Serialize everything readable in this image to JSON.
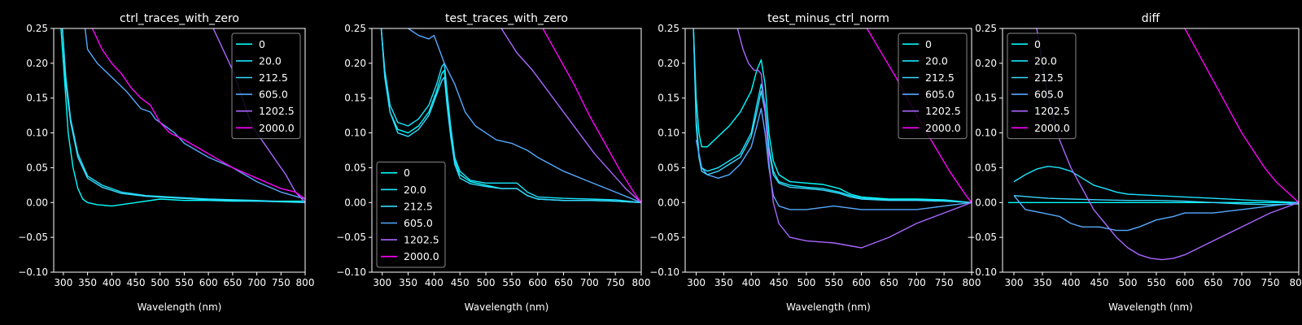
{
  "colors": {
    "background": "#000000",
    "axes": "#ffffff",
    "text": "#ffffff",
    "series": [
      "#00ffff",
      "#1ae5ff",
      "#38d8ff",
      "#55aaff",
      "#aa66ff",
      "#ff00ff"
    ]
  },
  "chart_data": [
    {
      "type": "line",
      "title": "ctrl_traces_with_zero",
      "xlabel": "Wavelength (nm)",
      "ylabel": "",
      "xlim": [
        280,
        800
      ],
      "ylim": [
        -0.1,
        0.25
      ],
      "xticks": [
        300,
        350,
        400,
        450,
        500,
        550,
        600,
        650,
        700,
        750,
        800
      ],
      "yticks": [
        -0.1,
        -0.05,
        0.0,
        0.05,
        0.1,
        0.15,
        0.2,
        0.25
      ],
      "ytick_labels": [
        "−0.10",
        "−0.05",
        "0.00",
        "0.05",
        "0.10",
        "0.15",
        "0.20",
        "0.25"
      ],
      "legend_position": "upper right",
      "series": [
        {
          "name": "0",
          "x": [
            295,
            300,
            305,
            310,
            320,
            330,
            340,
            350,
            370,
            400,
            450,
            500,
            550,
            600,
            650,
            700,
            750,
            800
          ],
          "y": [
            0.25,
            0.2,
            0.15,
            0.1,
            0.05,
            0.02,
            0.005,
            0.0,
            -0.003,
            -0.005,
            0.0,
            0.005,
            0.003,
            0.003,
            0.002,
            0.002,
            0.002,
            0.002
          ]
        },
        {
          "name": "20.0",
          "x": [
            298,
            305,
            315,
            330,
            350,
            380,
            420,
            470,
            520,
            600,
            700,
            800
          ],
          "y": [
            0.25,
            0.18,
            0.12,
            0.07,
            0.038,
            0.025,
            0.015,
            0.01,
            0.008,
            0.005,
            0.003,
            0.0
          ]
        },
        {
          "name": "212.5",
          "x": [
            298,
            305,
            315,
            330,
            350,
            380,
            420,
            470,
            520,
            600,
            700,
            800
          ],
          "y": [
            0.25,
            0.17,
            0.115,
            0.065,
            0.035,
            0.022,
            0.013,
            0.009,
            0.007,
            0.004,
            0.002,
            0.0
          ]
        },
        {
          "name": "605.0",
          "x": [
            345,
            350,
            370,
            400,
            430,
            460,
            480,
            490,
            510,
            530,
            550,
            600,
            650,
            700,
            750,
            800
          ],
          "y": [
            0.25,
            0.22,
            0.2,
            0.18,
            0.16,
            0.135,
            0.13,
            0.12,
            0.11,
            0.1,
            0.085,
            0.065,
            0.05,
            0.03,
            0.015,
            0.005
          ]
        },
        {
          "name": "1202.5",
          "x": [
            610,
            630,
            650,
            670,
            690,
            700,
            720,
            740,
            760,
            780,
            800
          ],
          "y": [
            0.25,
            0.22,
            0.19,
            0.15,
            0.11,
            0.1,
            0.08,
            0.06,
            0.04,
            0.015,
            0.0
          ]
        },
        {
          "name": "2000.0",
          "x": [
            360,
            380,
            400,
            420,
            440,
            460,
            480,
            500,
            520,
            550,
            600,
            650,
            700,
            750,
            780,
            800
          ],
          "y": [
            0.25,
            0.22,
            0.2,
            0.185,
            0.165,
            0.15,
            0.14,
            0.115,
            0.1,
            0.09,
            0.07,
            0.05,
            0.035,
            0.02,
            0.015,
            0.005
          ]
        }
      ]
    },
    {
      "type": "line",
      "title": "test_traces_with_zero",
      "xlabel": "Wavelength (nm)",
      "ylabel": "",
      "xlim": [
        280,
        800
      ],
      "ylim": [
        -0.1,
        0.25
      ],
      "xticks": [
        300,
        350,
        400,
        450,
        500,
        550,
        600,
        650,
        700,
        750,
        800
      ],
      "yticks": [
        -0.1,
        -0.05,
        0.0,
        0.05,
        0.1,
        0.15,
        0.2,
        0.25
      ],
      "ytick_labels": [
        "−0.10",
        "−0.05",
        "0.00",
        "0.05",
        "0.10",
        "0.15",
        "0.20",
        "0.25"
      ],
      "legend_position": "lower left",
      "series": [
        {
          "name": "0",
          "x": [
            298,
            305,
            315,
            330,
            350,
            370,
            390,
            405,
            415,
            420,
            425,
            432,
            440,
            450,
            470,
            500,
            530,
            560,
            580,
            600,
            650,
            700,
            750,
            800
          ],
          "y": [
            0.25,
            0.18,
            0.13,
            0.105,
            0.1,
            0.11,
            0.13,
            0.16,
            0.185,
            0.19,
            0.15,
            0.1,
            0.06,
            0.04,
            0.03,
            0.025,
            0.02,
            0.02,
            0.01,
            0.005,
            0.003,
            0.003,
            0.002,
            0.0
          ]
        },
        {
          "name": "20.0",
          "x": [
            298,
            305,
            315,
            330,
            350,
            370,
            390,
            405,
            415,
            420,
            425,
            432,
            440,
            450,
            470,
            500,
            530,
            560,
            580,
            600,
            650,
            700,
            750,
            800
          ],
          "y": [
            0.25,
            0.19,
            0.14,
            0.115,
            0.11,
            0.12,
            0.14,
            0.17,
            0.195,
            0.2,
            0.16,
            0.11,
            0.065,
            0.045,
            0.032,
            0.028,
            0.028,
            0.028,
            0.015,
            0.008,
            0.006,
            0.005,
            0.004,
            0.0
          ]
        },
        {
          "name": "212.5",
          "x": [
            298,
            305,
            315,
            330,
            350,
            370,
            390,
            405,
            415,
            420,
            425,
            432,
            440,
            450,
            470,
            500,
            530,
            560,
            580,
            600,
            650,
            700,
            750,
            800
          ],
          "y": [
            0.25,
            0.18,
            0.13,
            0.1,
            0.095,
            0.105,
            0.125,
            0.155,
            0.175,
            0.18,
            0.14,
            0.095,
            0.055,
            0.035,
            0.027,
            0.023,
            0.02,
            0.02,
            0.01,
            0.005,
            0.003,
            0.003,
            0.002,
            0.0
          ]
        },
        {
          "name": "605.0",
          "x": [
            350,
            370,
            390,
            400,
            420,
            440,
            460,
            480,
            500,
            520,
            550,
            580,
            600,
            650,
            700,
            750,
            800
          ],
          "y": [
            0.25,
            0.24,
            0.235,
            0.24,
            0.2,
            0.17,
            0.13,
            0.11,
            0.1,
            0.09,
            0.085,
            0.075,
            0.065,
            0.045,
            0.03,
            0.015,
            0.0
          ]
        },
        {
          "name": "1202.5",
          "x": [
            530,
            560,
            590,
            620,
            650,
            680,
            710,
            740,
            770,
            800
          ],
          "y": [
            0.25,
            0.215,
            0.19,
            0.16,
            0.13,
            0.1,
            0.07,
            0.045,
            0.02,
            0.0
          ]
        },
        {
          "name": "2000.0",
          "x": [
            610,
            640,
            670,
            700,
            730,
            760,
            790,
            800
          ],
          "y": [
            0.25,
            0.21,
            0.17,
            0.125,
            0.085,
            0.045,
            0.01,
            0.0
          ]
        }
      ]
    },
    {
      "type": "line",
      "title": "test_minus_ctrl_norm",
      "xlabel": "Wavelength (nm)",
      "ylabel": "",
      "xlim": [
        280,
        800
      ],
      "ylim": [
        -0.1,
        0.25
      ],
      "xticks": [
        300,
        350,
        400,
        450,
        500,
        550,
        600,
        650,
        700,
        750,
        800
      ],
      "yticks": [
        -0.1,
        -0.05,
        0.0,
        0.05,
        0.1,
        0.15,
        0.2,
        0.25
      ],
      "ytick_labels": [
        "−0.10",
        "−0.05",
        "0.00",
        "0.05",
        "0.10",
        "0.15",
        "0.20",
        "0.25"
      ],
      "legend_position": "upper right",
      "series": [
        {
          "name": "0",
          "x": [
            295,
            300,
            305,
            310,
            320,
            340,
            360,
            380,
            400,
            410,
            418,
            425,
            432,
            440,
            450,
            470,
            500,
            530,
            560,
            580,
            600,
            650,
            700,
            750,
            800
          ],
          "y": [
            0.25,
            0.15,
            0.1,
            0.08,
            0.08,
            0.095,
            0.11,
            0.13,
            0.16,
            0.19,
            0.205,
            0.17,
            0.1,
            0.06,
            0.04,
            0.03,
            0.028,
            0.026,
            0.02,
            0.012,
            0.008,
            0.005,
            0.005,
            0.004,
            0.0
          ]
        },
        {
          "name": "20.0",
          "x": [
            295,
            300,
            305,
            310,
            320,
            340,
            360,
            380,
            400,
            410,
            418,
            425,
            432,
            440,
            450,
            470,
            500,
            530,
            560,
            580,
            600,
            650,
            700,
            750,
            800
          ],
          "y": [
            0.25,
            0.12,
            0.07,
            0.05,
            0.045,
            0.05,
            0.06,
            0.07,
            0.1,
            0.14,
            0.17,
            0.14,
            0.08,
            0.045,
            0.03,
            0.025,
            0.022,
            0.02,
            0.015,
            0.01,
            0.006,
            0.004,
            0.004,
            0.003,
            0.0
          ]
        },
        {
          "name": "212.5",
          "x": [
            295,
            300,
            305,
            310,
            320,
            340,
            360,
            380,
            400,
            410,
            418,
            425,
            432,
            440,
            450,
            470,
            500,
            530,
            560,
            580,
            600,
            650,
            700,
            750,
            800
          ],
          "y": [
            0.25,
            0.11,
            0.065,
            0.045,
            0.04,
            0.045,
            0.055,
            0.065,
            0.095,
            0.13,
            0.16,
            0.13,
            0.075,
            0.04,
            0.028,
            0.022,
            0.02,
            0.018,
            0.013,
            0.008,
            0.005,
            0.003,
            0.003,
            0.002,
            0.0
          ]
        },
        {
          "name": "605.0",
          "x": [
            300,
            310,
            320,
            340,
            360,
            380,
            400,
            410,
            418,
            425,
            432,
            440,
            450,
            470,
            500,
            550,
            600,
            650,
            700,
            750,
            800
          ],
          "y": [
            0.09,
            0.05,
            0.04,
            0.035,
            0.04,
            0.055,
            0.08,
            0.11,
            0.135,
            0.1,
            0.05,
            0.01,
            -0.005,
            -0.01,
            -0.01,
            -0.005,
            -0.01,
            -0.01,
            -0.01,
            -0.005,
            0.0
          ]
        },
        {
          "name": "1202.5",
          "x": [
            375,
            385,
            395,
            405,
            412,
            418,
            424,
            432,
            440,
            450,
            470,
            500,
            550,
            600,
            650,
            700,
            750,
            800
          ],
          "y": [
            0.25,
            0.22,
            0.2,
            0.19,
            0.19,
            0.185,
            0.14,
            0.06,
            0.0,
            -0.03,
            -0.05,
            -0.055,
            -0.058,
            -0.065,
            -0.05,
            -0.03,
            -0.015,
            0.0
          ]
        },
        {
          "name": "2000.0",
          "x": [
            610,
            640,
            670,
            700,
            730,
            760,
            790,
            800
          ],
          "y": [
            0.25,
            0.21,
            0.17,
            0.125,
            0.085,
            0.045,
            0.01,
            0.0
          ]
        }
      ]
    },
    {
      "type": "line",
      "title": "diff",
      "xlabel": "Wavelength (nm)",
      "ylabel": "",
      "xlim": [
        280,
        800
      ],
      "ylim": [
        -0.1,
        0.25
      ],
      "xticks": [
        300,
        350,
        400,
        450,
        500,
        550,
        600,
        650,
        700,
        750,
        800
      ],
      "yticks": [
        -0.1,
        -0.05,
        0.0,
        0.05,
        0.1,
        0.15,
        0.2,
        0.25
      ],
      "ytick_labels": [
        "−0.10",
        "−0.05",
        "0.00",
        "0.05",
        "0.10",
        "0.15",
        "0.20",
        "0.25"
      ],
      "legend_position": "upper left",
      "series": [
        {
          "name": "0",
          "x": [
            290,
            350,
            400,
            450,
            500,
            550,
            600,
            650,
            700,
            750,
            800
          ],
          "y": [
            0.0,
            0.0,
            0.0,
            0.0,
            0.0,
            0.0,
            0.0,
            0.0,
            0.0,
            0.0,
            0.0
          ]
        },
        {
          "name": "20.0",
          "x": [
            300,
            320,
            340,
            360,
            380,
            400,
            420,
            440,
            460,
            480,
            500,
            550,
            600,
            650,
            700,
            750,
            800
          ],
          "y": [
            0.03,
            0.04,
            0.048,
            0.052,
            0.05,
            0.045,
            0.035,
            0.025,
            0.02,
            0.015,
            0.012,
            0.01,
            0.008,
            0.006,
            0.004,
            0.002,
            0.0
          ]
        },
        {
          "name": "212.5",
          "x": [
            300,
            330,
            360,
            400,
            450,
            500,
            550,
            600,
            650,
            700,
            750,
            800
          ],
          "y": [
            0.01,
            0.008,
            0.006,
            0.005,
            0.004,
            0.003,
            0.003,
            0.002,
            0.0,
            -0.002,
            -0.003,
            -0.002
          ]
        },
        {
          "name": "605.0",
          "x": [
            300,
            320,
            350,
            380,
            400,
            420,
            450,
            480,
            500,
            520,
            550,
            580,
            600,
            650,
            700,
            750,
            800
          ],
          "y": [
            0.01,
            -0.01,
            -0.015,
            -0.02,
            -0.03,
            -0.035,
            -0.035,
            -0.04,
            -0.04,
            -0.035,
            -0.025,
            -0.02,
            -0.015,
            -0.015,
            -0.01,
            -0.005,
            0.0
          ]
        },
        {
          "name": "1202.5",
          "x": [
            340,
            360,
            380,
            400,
            420,
            440,
            460,
            480,
            500,
            520,
            540,
            560,
            580,
            600,
            650,
            700,
            750,
            800
          ],
          "y": [
            0.25,
            0.15,
            0.09,
            0.05,
            0.02,
            -0.01,
            -0.03,
            -0.05,
            -0.065,
            -0.075,
            -0.08,
            -0.082,
            -0.08,
            -0.075,
            -0.055,
            -0.035,
            -0.015,
            0.0
          ]
        },
        {
          "name": "2000.0",
          "x": [
            600,
            620,
            640,
            660,
            680,
            700,
            720,
            740,
            760,
            780,
            800
          ],
          "y": [
            0.25,
            0.22,
            0.19,
            0.16,
            0.13,
            0.1,
            0.075,
            0.05,
            0.03,
            0.015,
            0.0
          ]
        }
      ]
    }
  ]
}
